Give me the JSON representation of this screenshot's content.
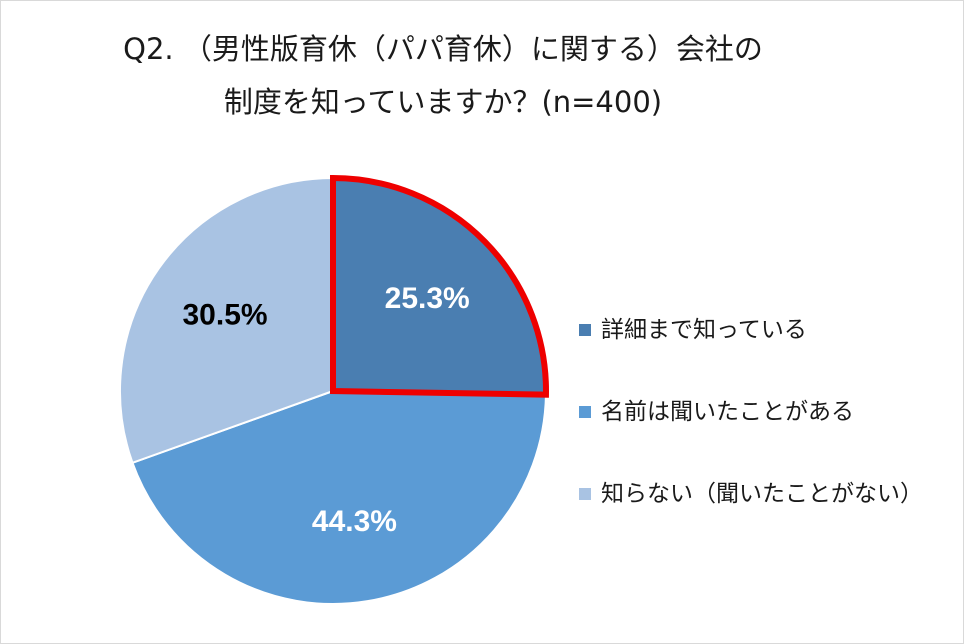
{
  "chart_data": {
    "type": "pie",
    "title_lines": [
      "Q2. （男性版育休（パパ育休）に関する）会社の",
      "制度を知っていますか？(n=400)"
    ],
    "categories": [
      "詳細まで知っている",
      "名前は聞いたことがある",
      "知らない（聞いたことがない）"
    ],
    "values": [
      25.3,
      44.3,
      30.5
    ],
    "data_labels": [
      "25.3%",
      "44.3%",
      "30.5%"
    ],
    "unit": "%",
    "colors": [
      "#4a7eb1",
      "#5b9bd5",
      "#a9c3e3"
    ],
    "label_colors": [
      "#ffffff",
      "#ffffff",
      "#000000"
    ],
    "highlight": {
      "slice_index": 0,
      "outline_color": "#ee0000"
    },
    "legend_position": "right"
  }
}
